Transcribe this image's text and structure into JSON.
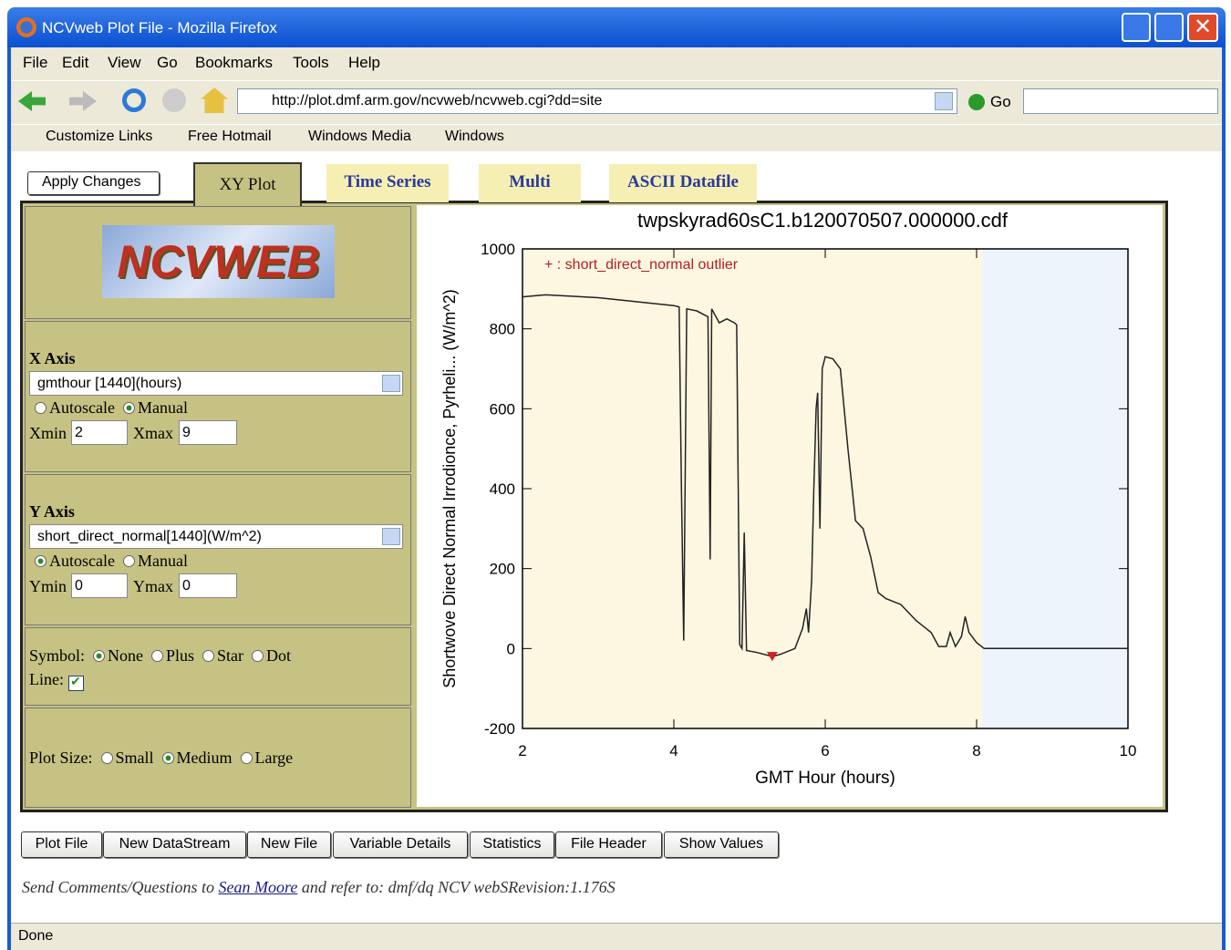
{
  "window": {
    "title": "NCVweb Plot File - Mozilla Firefox"
  },
  "menu": [
    "File",
    "Edit",
    "View",
    "Go",
    "Bookmarks",
    "Tools",
    "Help"
  ],
  "toolbar": {
    "url": "http://plot.dmf.arm.gov/ncvweb/ncvweb.cgi?dd=site",
    "go": "Go"
  },
  "links": [
    "Customize Links",
    "Free Hotmail",
    "Windows Media",
    "Windows"
  ],
  "tabs": {
    "apply": "Apply Changes",
    "items": [
      "XY Plot",
      "Time Series",
      "Multi",
      "ASCII Datafile"
    ]
  },
  "sidebar": {
    "x_axis": {
      "label": "X Axis",
      "variable": "gmthour [1440](hours)",
      "autoscale": "Autoscale",
      "manual": "Manual",
      "min_label": "Xmin",
      "min": "2",
      "max_label": "Xmax",
      "max": "9"
    },
    "y_axis": {
      "label": "Y Axis",
      "variable": "short_direct_normal[1440](W/m^2)",
      "autoscale": "Autoscale",
      "manual": "Manual",
      "min_label": "Ymin",
      "min": "0",
      "max_label": "Ymax",
      "max": "0"
    },
    "symbol": {
      "label": "Symbol:",
      "options": [
        "None",
        "Plus",
        "Star",
        "Dot"
      ],
      "line_label": "Line:"
    },
    "plot_size": {
      "label": "Plot Size:",
      "options": [
        "Small",
        "Medium",
        "Large"
      ]
    }
  },
  "buttons": [
    "Plot File",
    "New DataStream",
    "New File",
    "Variable Details",
    "Statistics",
    "File Header",
    "Show Values"
  ],
  "footer": {
    "text1": "Send Comments/Questions to",
    "link": "Sean Moore",
    "text2": "and refer to: dmf/dq NCV webSRevision:1.176S"
  },
  "status": "Done",
  "chart_data": {
    "type": "line",
    "title": "twpskyrad60sC1.b120070507.000000.cdf",
    "x_label": "GMT Hour (hours)",
    "y_label": "Shortwove Direct Normal Irrodionce, Pyrheli... (W/m^2)",
    "annotation": "+ : short_direct_normal outlier",
    "xlim": [
      2,
      10
    ],
    "xticks": [
      2,
      4,
      6,
      8,
      10
    ],
    "ylim": [
      -200,
      1000
    ],
    "yticks": [
      -200,
      0,
      200,
      400,
      600,
      800,
      1000
    ],
    "x": [
      2.0,
      2.3,
      3.0,
      3.5,
      4.0,
      4.07,
      4.1,
      4.13,
      4.17,
      4.3,
      4.45,
      4.48,
      4.5,
      4.6,
      4.7,
      4.8,
      4.83,
      4.87,
      4.9,
      4.93,
      4.96,
      5.1,
      5.3,
      5.4,
      5.6,
      5.7,
      5.75,
      5.78,
      5.82,
      5.85,
      5.88,
      5.9,
      5.93,
      5.96,
      6.0,
      6.1,
      6.2,
      6.3,
      6.4,
      6.5,
      6.6,
      6.7,
      6.8,
      7.0,
      7.2,
      7.4,
      7.5,
      7.6,
      7.65,
      7.72,
      7.8,
      7.85,
      7.9,
      8.0,
      8.1,
      10.0
    ],
    "series": [
      {
        "name": "short_direct_normal",
        "color": "#222222",
        "values": [
          880,
          885,
          878,
          868,
          858,
          855,
          400,
          20,
          850,
          845,
          830,
          223,
          850,
          815,
          825,
          815,
          810,
          10,
          0,
          290,
          -5,
          -10,
          -20,
          -15,
          0,
          50,
          100,
          40,
          170,
          400,
          600,
          640,
          300,
          700,
          730,
          725,
          700,
          500,
          320,
          300,
          230,
          140,
          125,
          110,
          70,
          40,
          5,
          5,
          40,
          5,
          30,
          80,
          40,
          15,
          0,
          0
        ]
      }
    ],
    "outlier": {
      "x": 5.3,
      "y": -20,
      "color": "#cc2222"
    }
  }
}
